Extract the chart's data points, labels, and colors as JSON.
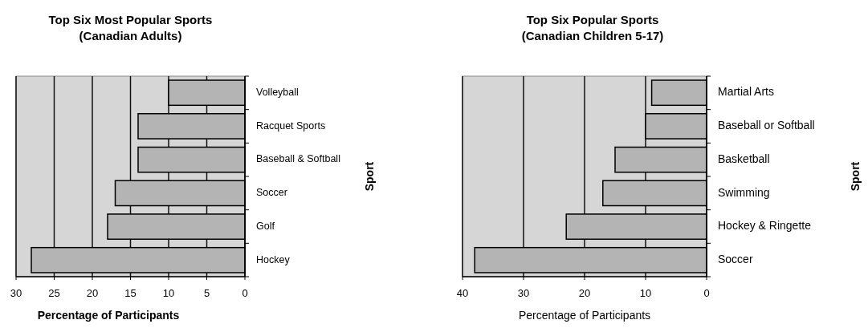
{
  "chart_data": [
    {
      "type": "bar",
      "orientation": "horizontal",
      "title": "Top Six Most Popular Sports\n(Canadian Adults)",
      "xlabel": "Percentage of Participants",
      "ylabel": "Sport",
      "categories": [
        "Volleyball",
        "Racquet Sports",
        "Baseball & Softball",
        "Soccer",
        "Golf",
        "Hockey"
      ],
      "values": [
        10,
        14,
        14,
        17,
        18,
        28
      ],
      "color": "#b4b4b4",
      "xlim": [
        30,
        0
      ],
      "xticks": [
        30,
        25,
        20,
        15,
        10,
        5,
        0
      ],
      "grid": "x"
    },
    {
      "type": "bar",
      "orientation": "horizontal",
      "title": "Top Six Popular Sports\n(Canadian Children 5-17)",
      "xlabel": "Percentage of Participants",
      "ylabel": "Sport",
      "categories": [
        "Martial Arts",
        "Baseball or Softball",
        "Basketball",
        "Swimming",
        "Hockey & Ringette",
        "Soccer"
      ],
      "values": [
        9,
        10,
        15,
        17,
        23,
        38
      ],
      "color": "#b4b4b4",
      "xlim": [
        40,
        0
      ],
      "xticks": [
        40,
        30,
        20,
        10,
        0
      ],
      "grid": "x"
    }
  ]
}
